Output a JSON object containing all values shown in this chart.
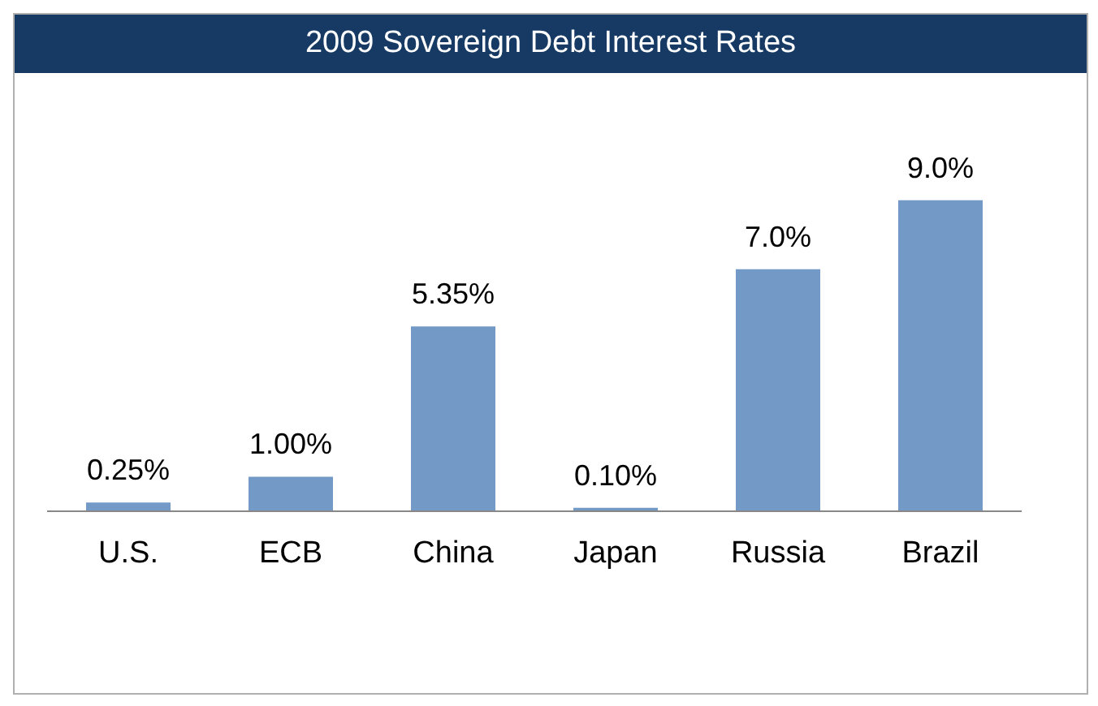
{
  "chart_data": {
    "type": "bar",
    "title": "2009 Sovereign Debt Interest Rates",
    "categories": [
      "U.S.",
      "ECB",
      "China",
      "Japan",
      "Russia",
      "Brazil"
    ],
    "values": [
      0.25,
      1.0,
      5.35,
      0.1,
      7.0,
      9.0
    ],
    "value_labels": [
      "0.25%",
      "1.00%",
      "5.35%",
      "0.10%",
      "7.0%",
      "9.0%"
    ],
    "color": "#7399c6",
    "grid": false,
    "legend": false
  }
}
